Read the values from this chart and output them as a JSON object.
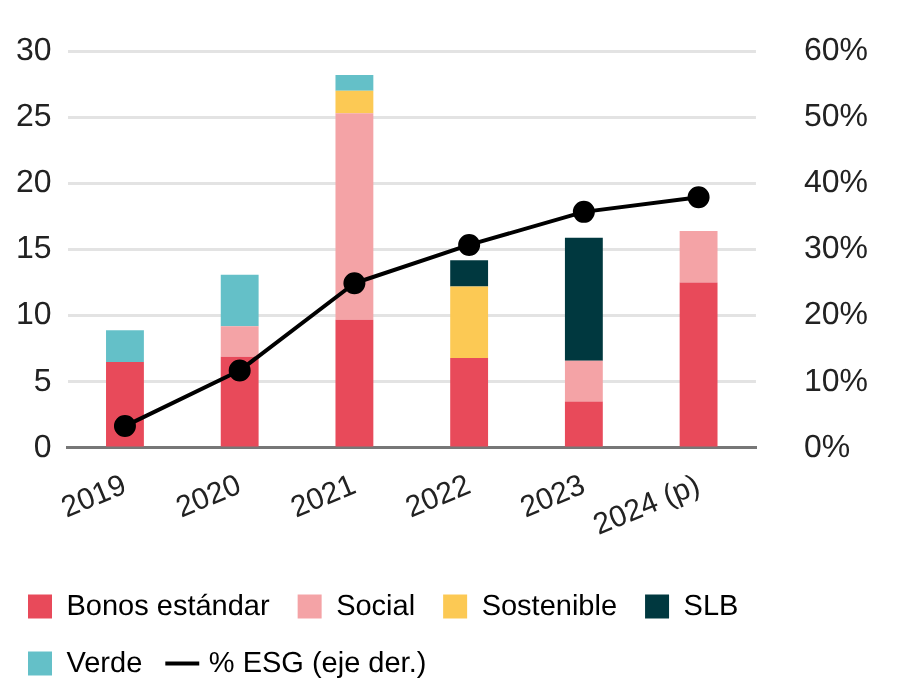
{
  "chart_data": {
    "type": "bar",
    "stacked": true,
    "categories": [
      "2019",
      "2020",
      "2021",
      "2022",
      "2023",
      "2024 (p)"
    ],
    "series": [
      {
        "name": "Bonos estándar",
        "color": "#e84a5a",
        "values": [
          6.5,
          6.9,
          9.7,
          6.8,
          3.5,
          12.5
        ]
      },
      {
        "name": "Social",
        "color": "#f4a3a6",
        "values": [
          null,
          2.3,
          15.6,
          null,
          3.1,
          3.9
        ]
      },
      {
        "name": "Sostenible",
        "color": "#fcc954",
        "values": [
          null,
          null,
          1.7,
          5.4,
          null,
          null
        ]
      },
      {
        "name": "SLB",
        "color": "#00383f",
        "values": [
          null,
          null,
          null,
          2.0,
          9.3,
          null
        ]
      },
      {
        "name": "Verde",
        "color": "#64c0c8",
        "values": [
          2.4,
          3.9,
          1.2,
          null,
          null,
          null
        ]
      },
      {
        "name": "% ESG (eje der.)",
        "type": "line",
        "axis": "y2",
        "color": "#000000",
        "marker": "circle",
        "values": [
          3.3,
          11.7,
          24.9,
          30.7,
          35.7,
          37.9
        ]
      }
    ],
    "ylim": [
      0,
      30
    ],
    "yticks": [
      0,
      5,
      10,
      15,
      20,
      25,
      30
    ],
    "y2lim": [
      0,
      60
    ],
    "y2ticks": [
      {
        "value": 0,
        "label": "0%"
      },
      {
        "value": 10,
        "label": "10%"
      },
      {
        "value": 20,
        "label": "20%"
      },
      {
        "value": 30,
        "label": "30%"
      },
      {
        "value": 40,
        "label": "40%"
      },
      {
        "value": 50,
        "label": "50%"
      },
      {
        "value": 60,
        "label": "60%"
      }
    ],
    "grid": "y",
    "legend": "bottom"
  }
}
